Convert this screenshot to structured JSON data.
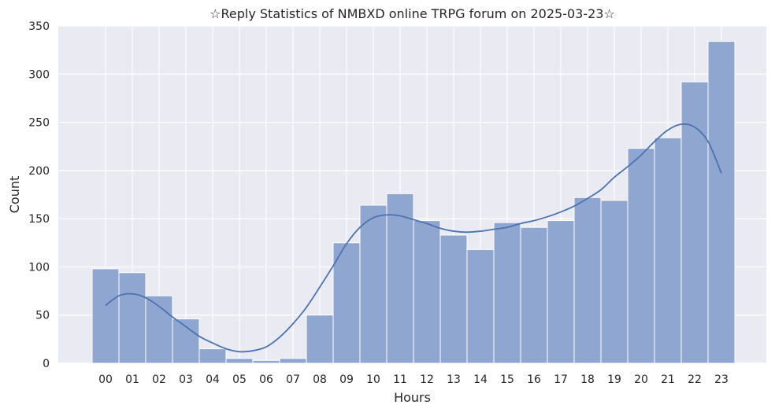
{
  "chart_data": {
    "type": "bar",
    "title": "☆Reply Statistics of NMBXD online TRPG forum on 2025-03-23☆",
    "xlabel": "Hours",
    "ylabel": "Count",
    "categories": [
      "00",
      "01",
      "02",
      "03",
      "04",
      "05",
      "06",
      "07",
      "08",
      "09",
      "10",
      "11",
      "12",
      "13",
      "14",
      "15",
      "16",
      "17",
      "18",
      "19",
      "20",
      "21",
      "22",
      "23"
    ],
    "values": [
      98,
      94,
      70,
      46,
      15,
      5,
      3,
      5,
      50,
      125,
      164,
      176,
      148,
      133,
      118,
      146,
      141,
      148,
      172,
      169,
      223,
      234,
      292,
      334
    ],
    "ylim": [
      0,
      350
    ],
    "yticks": [
      0,
      50,
      100,
      150,
      200,
      250,
      300,
      350
    ],
    "grid": true,
    "kde_curve": {
      "x": [
        0,
        0.5,
        1,
        1.5,
        2,
        2.5,
        3,
        3.5,
        4,
        4.5,
        5,
        5.5,
        6,
        6.5,
        7,
        7.5,
        8,
        8.5,
        9,
        9.5,
        10,
        10.5,
        11,
        11.5,
        12,
        12.5,
        13,
        13.5,
        14,
        14.5,
        15,
        15.5,
        16,
        16.5,
        17,
        17.5,
        18,
        18.5,
        19,
        19.5,
        20,
        20.5,
        21,
        21.5,
        22,
        22.5,
        23
      ],
      "y": [
        60,
        70,
        72,
        68,
        59,
        48,
        38,
        28,
        21,
        15,
        12,
        13,
        17,
        27,
        41,
        58,
        79,
        101,
        124,
        141,
        151,
        154,
        153,
        149,
        145,
        140,
        137,
        136,
        137,
        139,
        141,
        145,
        148,
        152,
        157,
        163,
        171,
        180,
        193,
        204,
        216,
        230,
        242,
        248,
        245,
        230,
        197
      ]
    },
    "colors": {
      "bar_fill": "#8fa6d0",
      "bar_edge": "#ffffff",
      "curve": "#4c72b0",
      "plot_bg": "#eaeaf2",
      "grid": "#ffffff"
    }
  }
}
